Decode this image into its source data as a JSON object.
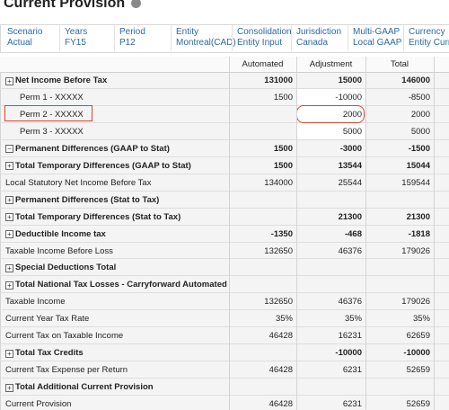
{
  "header": {
    "title": "Current Provision"
  },
  "pov": [
    {
      "label": "Scenario",
      "value": "Actual"
    },
    {
      "label": "Years",
      "value": "FY15"
    },
    {
      "label": "Period",
      "value": "P12"
    },
    {
      "label": "Entity",
      "value": "Montreal(CAD)"
    },
    {
      "label": "Consolidation",
      "value": "Entity Input"
    },
    {
      "label": "Jurisdiction",
      "value": "Canada"
    },
    {
      "label": "Multi-GAAP",
      "value": "Local GAAP"
    },
    {
      "label": "Currency",
      "value": "Entity Curr"
    }
  ],
  "table": {
    "columns": [
      "Automated",
      "Adjustment",
      "Total"
    ],
    "rows": [
      {
        "label": "Net Income Before Tax",
        "bold": true,
        "expander": "collapsed",
        "values": [
          "131000",
          "15000",
          "146000"
        ]
      },
      {
        "label": "Perm 1 - XXXXX",
        "indent": true,
        "editable": true,
        "values": [
          "1500",
          "-10000",
          "-8500"
        ]
      },
      {
        "label": "Perm 2 - XXXXX",
        "indent": true,
        "editable": true,
        "highlight": true,
        "values": [
          null,
          "2000",
          "2000"
        ]
      },
      {
        "label": "Perm 3 - XXXXX",
        "indent": true,
        "editable": true,
        "values": [
          null,
          "5000",
          "5000"
        ]
      },
      {
        "label": "Permanent Differences (GAAP to Stat)",
        "bold": true,
        "expander": "expanded",
        "values": [
          "1500",
          "-3000",
          "-1500"
        ]
      },
      {
        "label": "Total Temporary Differences (GAAP to Stat)",
        "bold": true,
        "expander": "collapsed",
        "values": [
          "1500",
          "13544",
          "15044"
        ]
      },
      {
        "label": "Local Statutory Net Income Before Tax",
        "values": [
          "134000",
          "25544",
          "159544"
        ]
      },
      {
        "label": "Permanent Differences (Stat to Tax)",
        "bold": true,
        "expander": "collapsed",
        "values": [
          null,
          null,
          null
        ]
      },
      {
        "label": "Total Temporary Differences (Stat to Tax)",
        "bold": true,
        "expander": "collapsed",
        "values": [
          null,
          "21300",
          "21300"
        ]
      },
      {
        "label": "Deductible Income tax",
        "bold": true,
        "expander": "collapsed",
        "values": [
          "-1350",
          "-468",
          "-1818"
        ]
      },
      {
        "label": "Taxable Income Before Loss",
        "values": [
          "132650",
          "46376",
          "179026"
        ]
      },
      {
        "label": "Special Deductions Total",
        "bold": true,
        "expander": "collapsed",
        "values": [
          null,
          null,
          null
        ]
      },
      {
        "label": "Total National Tax Losses - Carryforward Automated",
        "bold": true,
        "expander": "collapsed",
        "values": [
          null,
          null,
          null
        ]
      },
      {
        "label": "Taxable Income",
        "values": [
          "132650",
          "46376",
          "179026"
        ]
      },
      {
        "label": "Current Year Tax Rate",
        "values": [
          "35%",
          "35%",
          "35%"
        ]
      },
      {
        "label": "Current Tax on Taxable Income",
        "values": [
          "46428",
          "16231",
          "62659"
        ]
      },
      {
        "label": "Total Tax Credits",
        "bold": true,
        "expander": "collapsed",
        "values": [
          null,
          "-10000",
          "-10000"
        ]
      },
      {
        "label": "Current Tax Expense per Return",
        "values": [
          "46428",
          "6231",
          "52659"
        ]
      },
      {
        "label": "Total Additional Current Provision",
        "bold": true,
        "expander": "collapsed",
        "values": [
          null,
          null,
          null
        ]
      },
      {
        "label": "Current Provision",
        "values": [
          "46428",
          "6231",
          "52659"
        ]
      }
    ]
  }
}
